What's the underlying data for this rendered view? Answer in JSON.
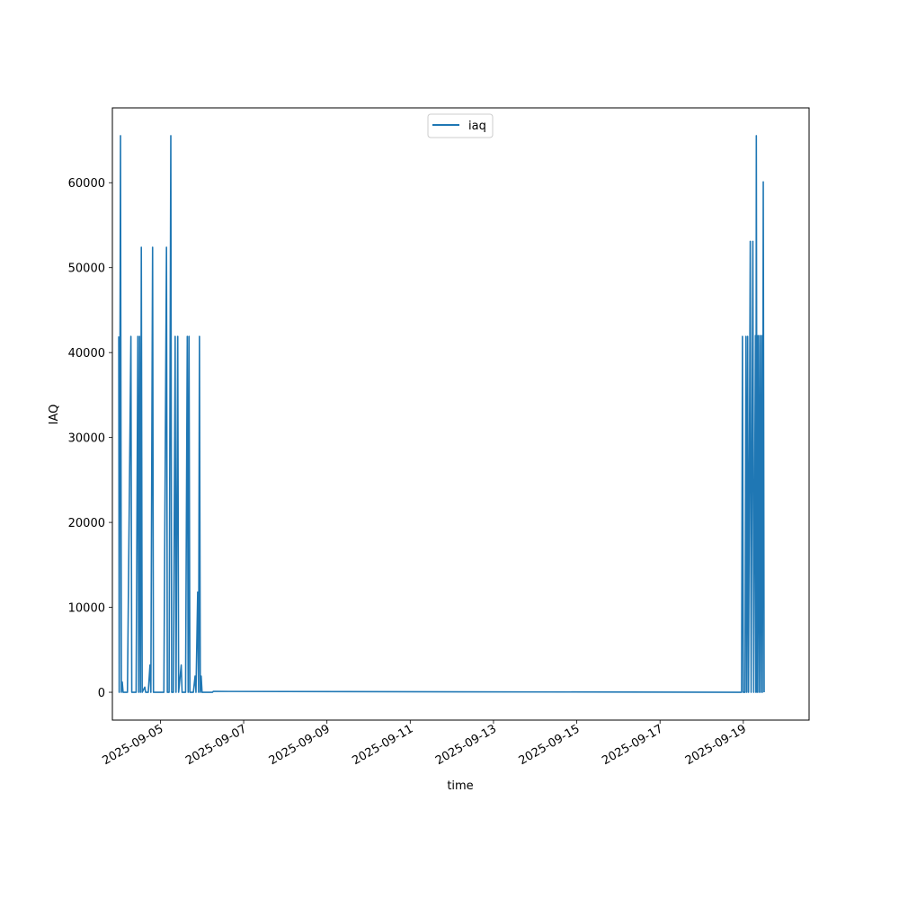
{
  "chart_data": {
    "type": "line",
    "title": "",
    "xlabel": "time",
    "ylabel": "IAQ",
    "x_tick_labels": [
      "2025-09-05",
      "2025-09-07",
      "2025-09-09",
      "2025-09-11",
      "2025-09-13",
      "2025-09-15",
      "2025-09-17",
      "2025-09-19"
    ],
    "y_tick_labels": [
      "0",
      "10000",
      "20000",
      "30000",
      "40000",
      "50000",
      "60000"
    ],
    "y_ticks": [
      0,
      10000,
      20000,
      30000,
      40000,
      50000,
      60000
    ],
    "xlim": [
      "2025-09-03T20:19",
      "2025-09-20T13:55"
    ],
    "ylim": [
      -3277,
      68812
    ],
    "grid": false,
    "legend": {
      "entries": [
        "iaq"
      ],
      "placement": "upper center"
    },
    "colors": {
      "series": "#1f77b4",
      "axes": "#000000",
      "background": "#ffffff"
    },
    "series": [
      {
        "name": "iaq",
        "points": [
          [
            "2025-09-04T00:00",
            41900
          ],
          [
            "2025-09-04T00:15",
            0
          ],
          [
            "2025-09-04T01:00",
            65535
          ],
          [
            "2025-09-04T01:30",
            0
          ],
          [
            "2025-09-04T02:00",
            1200
          ],
          [
            "2025-09-04T02:30",
            0
          ],
          [
            "2025-09-04T05:00",
            0
          ],
          [
            "2025-09-04T07:00",
            41900
          ],
          [
            "2025-09-04T07:30",
            0
          ],
          [
            "2025-09-04T10:00",
            0
          ],
          [
            "2025-09-04T11:00",
            41900
          ],
          [
            "2025-09-04T11:30",
            0
          ],
          [
            "2025-09-04T12:00",
            41900
          ],
          [
            "2025-09-04T12:30",
            0
          ],
          [
            "2025-09-04T13:00",
            52400
          ],
          [
            "2025-09-04T13:30",
            0
          ],
          [
            "2025-09-04T15:00",
            600
          ],
          [
            "2025-09-04T15:30",
            0
          ],
          [
            "2025-09-04T17:00",
            0
          ],
          [
            "2025-09-04T18:00",
            3200
          ],
          [
            "2025-09-04T18:30",
            0
          ],
          [
            "2025-09-04T19:30",
            52400
          ],
          [
            "2025-09-04T20:00",
            0
          ],
          [
            "2025-09-05T02:00",
            0
          ],
          [
            "2025-09-05T03:30",
            52400
          ],
          [
            "2025-09-05T04:00",
            0
          ],
          [
            "2025-09-05T05:00",
            0
          ],
          [
            "2025-09-05T06:00",
            65535
          ],
          [
            "2025-09-05T06:30",
            0
          ],
          [
            "2025-09-05T07:30",
            0
          ],
          [
            "2025-09-05T08:30",
            41900
          ],
          [
            "2025-09-05T09:00",
            0
          ],
          [
            "2025-09-05T10:00",
            41900
          ],
          [
            "2025-09-05T10:30",
            0
          ],
          [
            "2025-09-05T12:00",
            3200
          ],
          [
            "2025-09-05T12:30",
            0
          ],
          [
            "2025-09-05T14:30",
            0
          ],
          [
            "2025-09-05T15:30",
            41900
          ],
          [
            "2025-09-05T16:00",
            0
          ],
          [
            "2025-09-05T16:30",
            41900
          ],
          [
            "2025-09-05T17:00",
            0
          ],
          [
            "2025-09-05T19:00",
            0
          ],
          [
            "2025-09-05T20:00",
            1900
          ],
          [
            "2025-09-05T20:30",
            0
          ],
          [
            "2025-09-05T21:30",
            11800
          ],
          [
            "2025-09-05T22:00",
            0
          ],
          [
            "2025-09-05T22:30",
            41900
          ],
          [
            "2025-09-05T23:00",
            0
          ],
          [
            "2025-09-05T23:30",
            1900
          ],
          [
            "2025-09-06T00:00",
            0
          ],
          [
            "2025-09-06T06:00",
            0
          ],
          [
            "2025-09-06T06:30",
            100
          ],
          [
            "2025-09-18T23:00",
            0
          ],
          [
            "2025-09-18T23:30",
            41900
          ],
          [
            "2025-09-19T00:00",
            0
          ],
          [
            "2025-09-19T01:00",
            0
          ],
          [
            "2025-09-19T01:30",
            41900
          ],
          [
            "2025-09-19T02:00",
            0
          ],
          [
            "2025-09-19T02:30",
            41900
          ],
          [
            "2025-09-19T03:00",
            0
          ],
          [
            "2025-09-19T04:00",
            53100
          ],
          [
            "2025-09-19T04:30",
            0
          ],
          [
            "2025-09-19T05:30",
            53100
          ],
          [
            "2025-09-19T06:00",
            0
          ],
          [
            "2025-09-19T07:00",
            42000
          ],
          [
            "2025-09-19T07:15",
            0
          ],
          [
            "2025-09-19T07:30",
            65535
          ],
          [
            "2025-09-19T08:00",
            0
          ],
          [
            "2025-09-19T08:30",
            42000
          ],
          [
            "2025-09-19T09:00",
            0
          ],
          [
            "2025-09-19T09:30",
            42000
          ],
          [
            "2025-09-19T10:00",
            0
          ],
          [
            "2025-09-19T10:30",
            42000
          ],
          [
            "2025-09-19T11:00",
            0
          ],
          [
            "2025-09-19T11:30",
            60100
          ],
          [
            "2025-09-19T12:00",
            0
          ]
        ]
      }
    ]
  }
}
